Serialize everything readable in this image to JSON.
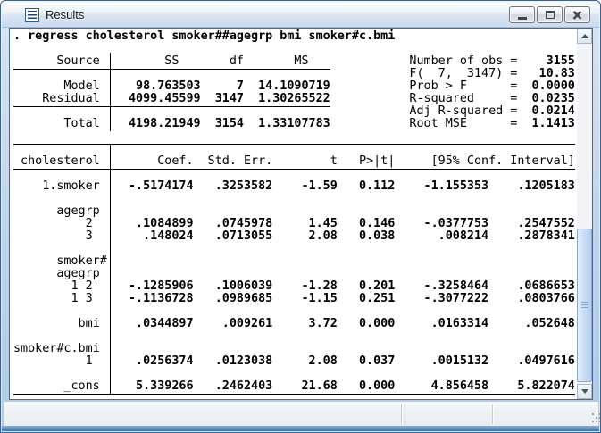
{
  "window": {
    "title": "Results",
    "controls": [
      "minimize-icon",
      "restore-icon",
      "close-icon"
    ],
    "icon": "results-document-icon"
  },
  "colors": {
    "frame_blue": "#aecae7",
    "bottom_edge_blue": "#3a72b4",
    "scroll_thumb_blue": "#c9dcf4",
    "text": "#000000",
    "content_bg": "#ffffff"
  },
  "output": {
    "command": ". regress cholesterol smoker##agegrp bmi smoker#c.bmi",
    "lines": [
      [
        [
          "r",
          ". regress cholesterol smoker##agegrp bmi smoker#c.bmi"
        ]
      ],
      [],
      [
        [
          "t",
          "      Source         SS       df       MS              Number of obs ="
        ],
        [
          "r",
          "    3155"
        ]
      ],
      [
        [
          "t",
          "                                                       F(  7,  3147) ="
        ],
        [
          "r",
          "   10.83"
        ]
      ],
      [
        [
          "t",
          "       Model"
        ],
        [
          "r",
          "     98.763503     7  14.1090719"
        ],
        [
          "t",
          "           Prob > F      ="
        ],
        [
          "r",
          "  0.0000"
        ]
      ],
      [
        [
          "t",
          "    Residual"
        ],
        [
          "r",
          "    4099.45599  3147  1.30265522"
        ],
        [
          "t",
          "           R-squared     ="
        ],
        [
          "r",
          "  0.0235"
        ]
      ],
      [
        [
          "t",
          "                                                       Adj R-squared ="
        ],
        [
          "r",
          "  0.0214"
        ]
      ],
      [
        [
          "t",
          "       Total"
        ],
        [
          "r",
          "    4198.21949  3154  1.33107783"
        ],
        [
          "t",
          "           Root MSE      ="
        ],
        [
          "r",
          "  1.1413"
        ]
      ],
      [],
      [],
      [
        [
          "t",
          " cholesterol        Coef.  Std. Err.        t   P>|t|     [95% Conf. Interval]"
        ]
      ],
      [],
      [
        [
          "t",
          "    1.smoker"
        ],
        [
          "r",
          "    -.5174174   .3253582    -1.59   0.112    -1.155353    .1205183"
        ]
      ],
      [],
      [
        [
          "t",
          "      agegrp"
        ]
      ],
      [
        [
          "t",
          "          2"
        ],
        [
          "r",
          "      .1084899   .0745978     1.45   0.146    -.0377753    .2547552"
        ]
      ],
      [
        [
          "t",
          "          3"
        ],
        [
          "r",
          "       .148024   .0713055     2.08   0.038      .008214    .2878341"
        ]
      ],
      [],
      [
        [
          "t",
          "      smoker#"
        ]
      ],
      [
        [
          "t",
          "      agegrp"
        ]
      ],
      [
        [
          "t",
          "        1 2"
        ],
        [
          "r",
          "     -.1285906   .1006039    -1.28   0.201    -.3258464    .0686653"
        ]
      ],
      [
        [
          "t",
          "        1 3"
        ],
        [
          "r",
          "     -.1136728   .0989685    -1.15   0.251    -.3077222    .0803766"
        ]
      ],
      [],
      [
        [
          "t",
          "         bmi"
        ],
        [
          "r",
          "     .0344897    .009261     3.72   0.000     .0163314     .052648"
        ]
      ],
      [],
      [
        [
          "t",
          "smoker#c.bmi"
        ]
      ],
      [
        [
          "t",
          "          1"
        ],
        [
          "r",
          "      .0256374   .0123038     2.08   0.037     .0015132    .0497616"
        ]
      ],
      [],
      [
        [
          "t",
          "       _cons"
        ],
        [
          "r",
          "     5.339266   .2462403    21.68   0.000     4.856458    5.822074"
        ]
      ],
      []
    ]
  },
  "anova_table": {
    "headers": [
      "Source",
      "SS",
      "df",
      "MS"
    ],
    "rows": [
      [
        "Model",
        "98.763503",
        "7",
        "14.1090719"
      ],
      [
        "Residual",
        "4099.45599",
        "3147",
        "1.30265522"
      ],
      [
        "Total",
        "4198.21949",
        "3154",
        "1.33107783"
      ]
    ]
  },
  "fit_statistics": [
    [
      "Number of obs",
      "3155"
    ],
    [
      "F(  7,  3147)",
      "10.83"
    ],
    [
      "Prob > F",
      "0.0000"
    ],
    [
      "R-squared",
      "0.0235"
    ],
    [
      "Adj R-squared",
      "0.0214"
    ],
    [
      "Root MSE",
      "1.1413"
    ]
  ],
  "coefficient_table": {
    "depvar": "cholesterol",
    "headers": [
      "Coef.",
      "Std. Err.",
      "t",
      "P>|t|",
      "[95% Conf. Interval]"
    ],
    "rows": [
      [
        "1.smoker",
        "-.5174174",
        ".3253582",
        "-1.59",
        "0.112",
        "-1.155353",
        ".1205183"
      ],
      [
        "agegrp 2",
        ".1084899",
        ".0745978",
        "1.45",
        "0.146",
        "-.0377753",
        ".2547552"
      ],
      [
        "agegrp 3",
        ".148024",
        ".0713055",
        "2.08",
        "0.038",
        ".008214",
        ".2878341"
      ],
      [
        "smoker#agegrp 1 2",
        "-.1285906",
        ".1006039",
        "-1.28",
        "0.201",
        "-.3258464",
        ".0686653"
      ],
      [
        "smoker#agegrp 1 3",
        "-.1136728",
        ".0989685",
        "-1.15",
        "0.251",
        "-.3077222",
        ".0803766"
      ],
      [
        "bmi",
        ".0344897",
        ".009261",
        "3.72",
        "0.000",
        ".0163314",
        ".052648"
      ],
      [
        "smoker#c.bmi 1",
        ".0256374",
        ".0123038",
        "2.08",
        "0.037",
        ".0015132",
        ".0497616"
      ],
      [
        "_cons",
        "5.339266",
        ".2462403",
        "21.68",
        "0.000",
        "4.856458",
        "5.822074"
      ]
    ]
  }
}
